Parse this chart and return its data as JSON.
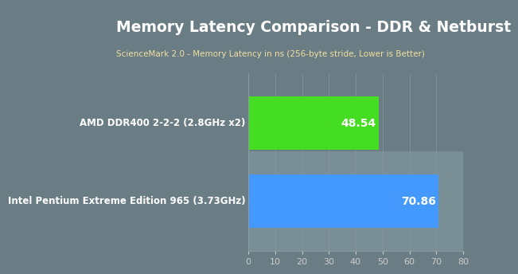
{
  "title": "Memory Latency Comparison - DDR & Netburst",
  "subtitle": "ScienceMark 2.0 - Memory Latency in ns (256-byte stride, Lower is Better)",
  "categories": [
    "AMD DDR400 2-2-2 (2.8GHz x2)",
    "Intel Pentium Extreme Edition 965 (3.73GHz)"
  ],
  "values": [
    48.54,
    70.86
  ],
  "bar_colors": [
    "#44dd22",
    "#4499ff"
  ],
  "background_color": "#6b7d84",
  "title_bg_color": "#d4960e",
  "title_color": "#ffffff",
  "subtitle_color": "#f0e0a0",
  "label_color": "#ffffff",
  "value_color": "#ffffff",
  "tick_color": "#cccccc",
  "grid_color": "#8a9aa0",
  "highlight_bg_color": "#7a8e95",
  "xlim": [
    0,
    80
  ],
  "xticks": [
    0,
    10,
    20,
    30,
    40,
    50,
    60,
    70,
    80
  ],
  "title_fontsize": 13.5,
  "subtitle_fontsize": 7.5,
  "label_fontsize": 8.5,
  "value_fontsize": 10.0
}
